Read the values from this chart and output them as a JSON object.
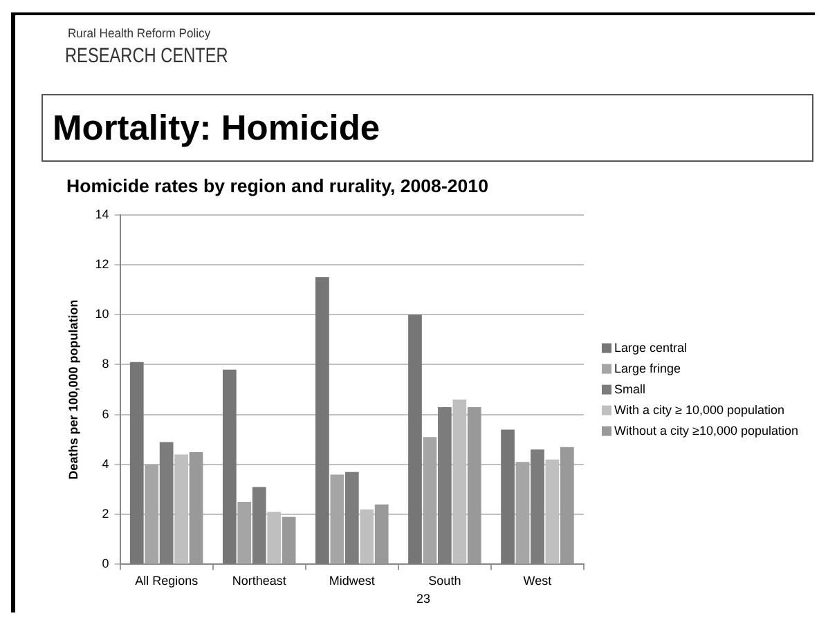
{
  "chart_data": {
    "type": "bar",
    "title": "Mortality: Homicide",
    "subtitle": "Homicide rates by region and rurality, 2008-2010",
    "ylabel": "Deaths per 100,000 population",
    "annotations": [
      "Rural Health Reform Policy",
      "RESEARCH CENTER",
      "23"
    ],
    "categories": [
      "All Regions",
      "Northeast",
      "Midwest",
      "South",
      "West"
    ],
    "series": [
      {
        "name": "Large central",
        "color": "#767676",
        "values": [
          8.1,
          7.8,
          11.5,
          10.0,
          5.4
        ]
      },
      {
        "name": "Large fringe",
        "color": "#a5a5a5",
        "values": [
          4.0,
          2.5,
          3.6,
          5.1,
          4.1
        ]
      },
      {
        "name": "Small",
        "color": "#7c7c7c",
        "values": [
          4.9,
          3.1,
          3.7,
          6.3,
          4.6
        ]
      },
      {
        "name": "With a city ≥ 10,000 population",
        "color": "#bfbfbf",
        "values": [
          4.4,
          2.1,
          2.2,
          6.6,
          4.2
        ]
      },
      {
        "name": "Without a city ≥10,000 population",
        "color": "#999999",
        "values": [
          4.5,
          1.9,
          2.4,
          6.3,
          4.7
        ]
      }
    ],
    "ylim": [
      0,
      14
    ],
    "yticks": [
      0,
      2,
      4,
      6,
      8,
      10,
      12,
      14
    ],
    "grid": "y",
    "legend": "right"
  }
}
